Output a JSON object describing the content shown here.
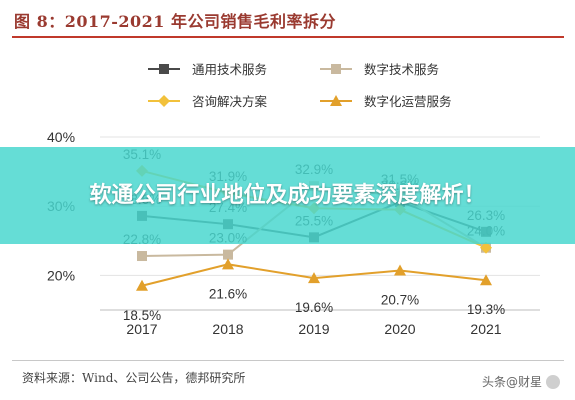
{
  "page": {
    "title": "图 8：2017-2021 年公司销售毛利率拆分",
    "source": "资料来源：Wind、公司公告，德邦研究所",
    "watermark": "头条@财星",
    "overlay_text": "软通公司行业地位及成功要素深度解析！"
  },
  "colors": {
    "title": "#9a3a30",
    "rule": "#c0392b",
    "overlay": "#48d6ce",
    "overlay_text": "#ffffff"
  },
  "chart_data": {
    "type": "line",
    "categories": [
      "2017",
      "2018",
      "2019",
      "2020",
      "2021"
    ],
    "ylim": [
      15,
      40
    ],
    "yticks": [
      "40%",
      "30%",
      "20%"
    ],
    "grid": "horizontal",
    "legend_position": "top",
    "series": [
      {
        "name": "通用技术服务",
        "values": [
          28.6,
          27.4,
          25.5,
          30.6,
          26.3
        ],
        "labels": [
          "28.6%",
          "27.4%",
          "25.5%",
          "30.6%",
          "26.3%"
        ],
        "color": "#4a4a4a",
        "marker": "square",
        "label_pos": "above"
      },
      {
        "name": "数字技术服务",
        "values": [
          22.8,
          23.0,
          32.9,
          31.5,
          24.0
        ],
        "labels": [
          "22.8%",
          "23.0%",
          "32.9%",
          "31.5%",
          "24.0%"
        ],
        "color": "#c9b99f",
        "marker": "square",
        "label_pos": "above"
      },
      {
        "name": "咨询解决方案",
        "values": [
          35.1,
          31.9,
          29.7,
          29.5,
          24.0
        ],
        "labels": [
          "35.1%",
          "31.9%",
          "",
          "",
          ""
        ],
        "color": "#f2c13b",
        "marker": "diamond",
        "label_pos": "above"
      },
      {
        "name": "数字化运营服务",
        "values": [
          18.5,
          21.6,
          19.6,
          20.7,
          19.3
        ],
        "labels": [
          "18.5%",
          "21.6%",
          "19.6%",
          "20.7%",
          "19.3%"
        ],
        "color": "#e2a02b",
        "marker": "triangle",
        "label_pos": "below"
      }
    ]
  }
}
